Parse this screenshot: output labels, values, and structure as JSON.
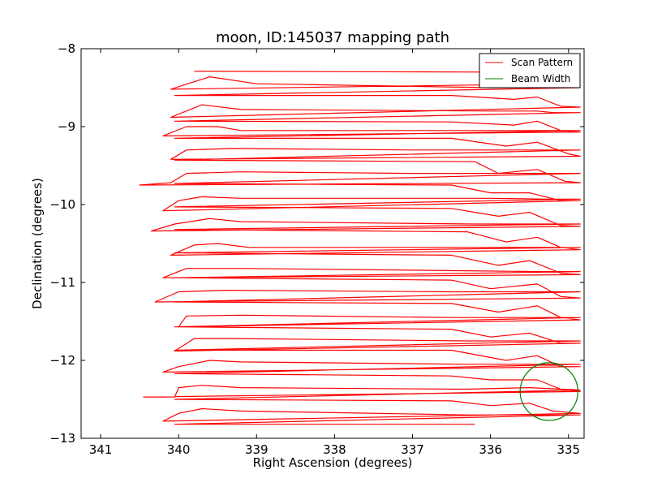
{
  "chart_data": {
    "type": "line",
    "title": "moon, ID:145037 mapping path",
    "xlabel": "Right Ascension (degrees)",
    "ylabel": "Declination (degrees)",
    "xlim": [
      341.25,
      334.8
    ],
    "ylim": [
      -13,
      -8
    ],
    "x_ticks": [
      341,
      340,
      339,
      338,
      337,
      336,
      335
    ],
    "y_ticks": [
      -13,
      -12,
      -11,
      -10,
      -9,
      -8
    ],
    "x_tick_labels": [
      "341",
      "340",
      "339",
      "338",
      "337",
      "336",
      "335"
    ],
    "y_tick_labels": [
      "−13",
      "−12",
      "−11",
      "−10",
      "−9",
      "−8"
    ],
    "grid": false,
    "legend_position": "top-right",
    "colors": {
      "scan": "#ff0000",
      "beam": "#008000"
    },
    "scan_shape": {
      "left_ra": 340.1,
      "right_ra": 334.85,
      "row_start_dec": -8.3,
      "row_step_dec": -0.149,
      "row_count": 31,
      "final_row_end_ra": 336.2
    },
    "series": [
      {
        "name": "Scan Pattern",
        "kind": "scan",
        "points": [
          [
            339.8,
            -8.29
          ],
          [
            336.0,
            -8.3
          ],
          [
            335.4,
            -8.35
          ],
          [
            335.0,
            -8.45
          ],
          [
            340.1,
            -8.52
          ],
          [
            339.6,
            -8.36
          ],
          [
            339.0,
            -8.45
          ],
          [
            336.0,
            -8.5
          ],
          [
            335.3,
            -8.5
          ],
          [
            335.0,
            -8.5
          ],
          [
            334.85,
            -8.5
          ],
          [
            340.05,
            -8.6
          ],
          [
            336.5,
            -8.6
          ],
          [
            335.7,
            -8.65
          ],
          [
            335.4,
            -8.62
          ],
          [
            335.1,
            -8.74
          ],
          [
            334.85,
            -8.75
          ],
          [
            340.1,
            -8.88
          ],
          [
            339.7,
            -8.72
          ],
          [
            339.2,
            -8.78
          ],
          [
            336.0,
            -8.8
          ],
          [
            335.4,
            -8.8
          ],
          [
            335.2,
            -8.82
          ],
          [
            334.85,
            -8.82
          ],
          [
            340.05,
            -8.93
          ],
          [
            336.5,
            -8.94
          ],
          [
            335.7,
            -8.98
          ],
          [
            335.4,
            -8.93
          ],
          [
            335.1,
            -9.05
          ],
          [
            334.85,
            -9.07
          ],
          [
            340.2,
            -9.12
          ],
          [
            339.9,
            -9.0
          ],
          [
            339.5,
            -9.0
          ],
          [
            339.2,
            -9.05
          ],
          [
            336.0,
            -9.05
          ],
          [
            335.3,
            -9.05
          ],
          [
            334.85,
            -9.05
          ],
          [
            340.05,
            -9.15
          ],
          [
            336.5,
            -9.15
          ],
          [
            335.8,
            -9.25
          ],
          [
            335.4,
            -9.2
          ],
          [
            335.0,
            -9.35
          ],
          [
            334.85,
            -9.38
          ],
          [
            340.1,
            -9.42
          ],
          [
            339.9,
            -9.3
          ],
          [
            339.3,
            -9.28
          ],
          [
            337.0,
            -9.3
          ],
          [
            336.0,
            -9.3
          ],
          [
            335.3,
            -9.3
          ],
          [
            334.85,
            -9.3
          ],
          [
            340.05,
            -9.43
          ],
          [
            336.2,
            -9.45
          ],
          [
            335.9,
            -9.6
          ],
          [
            335.4,
            -9.55
          ],
          [
            335.05,
            -9.7
          ],
          [
            334.85,
            -9.72
          ],
          [
            340.5,
            -9.75
          ],
          [
            340.1,
            -9.72
          ],
          [
            339.9,
            -9.6
          ],
          [
            339.2,
            -9.58
          ],
          [
            337.0,
            -9.6
          ],
          [
            335.9,
            -9.6
          ],
          [
            335.3,
            -9.6
          ],
          [
            334.85,
            -9.6
          ],
          [
            340.05,
            -9.73
          ],
          [
            336.5,
            -9.75
          ],
          [
            336.0,
            -9.85
          ],
          [
            335.5,
            -9.85
          ],
          [
            335.1,
            -9.95
          ],
          [
            334.85,
            -9.95
          ],
          [
            340.2,
            -10.08
          ],
          [
            340.0,
            -9.95
          ],
          [
            339.7,
            -9.9
          ],
          [
            339.2,
            -9.92
          ],
          [
            336.0,
            -9.92
          ],
          [
            335.3,
            -9.93
          ],
          [
            334.85,
            -9.93
          ],
          [
            340.05,
            -10.03
          ],
          [
            336.5,
            -10.05
          ],
          [
            335.9,
            -10.15
          ],
          [
            335.5,
            -10.1
          ],
          [
            335.1,
            -10.27
          ],
          [
            334.85,
            -10.28
          ],
          [
            340.35,
            -10.34
          ],
          [
            340.05,
            -10.25
          ],
          [
            339.6,
            -10.18
          ],
          [
            339.2,
            -10.22
          ],
          [
            336.2,
            -10.25
          ],
          [
            335.7,
            -10.25
          ],
          [
            334.85,
            -10.25
          ],
          [
            340.05,
            -10.32
          ],
          [
            336.3,
            -10.35
          ],
          [
            335.8,
            -10.48
          ],
          [
            335.4,
            -10.42
          ],
          [
            335.1,
            -10.55
          ],
          [
            334.85,
            -10.58
          ],
          [
            340.1,
            -10.65
          ],
          [
            339.8,
            -10.52
          ],
          [
            339.5,
            -10.5
          ],
          [
            339.1,
            -10.55
          ],
          [
            336.3,
            -10.55
          ],
          [
            335.7,
            -10.55
          ],
          [
            334.85,
            -10.55
          ],
          [
            340.05,
            -10.62
          ],
          [
            336.5,
            -10.65
          ],
          [
            335.9,
            -10.78
          ],
          [
            335.5,
            -10.72
          ],
          [
            335.1,
            -10.88
          ],
          [
            334.85,
            -10.9
          ],
          [
            340.2,
            -10.94
          ],
          [
            339.9,
            -10.82
          ],
          [
            339.2,
            -10.82
          ],
          [
            336.3,
            -10.85
          ],
          [
            335.4,
            -10.86
          ],
          [
            334.85,
            -10.86
          ],
          [
            340.05,
            -10.94
          ],
          [
            336.5,
            -10.97
          ],
          [
            336.0,
            -11.08
          ],
          [
            335.4,
            -11.02
          ],
          [
            335.1,
            -11.18
          ],
          [
            334.85,
            -11.2
          ],
          [
            340.3,
            -11.25
          ],
          [
            340.0,
            -11.12
          ],
          [
            339.4,
            -11.1
          ],
          [
            336.5,
            -11.12
          ],
          [
            335.4,
            -11.12
          ],
          [
            334.85,
            -11.12
          ],
          [
            340.05,
            -11.25
          ],
          [
            336.5,
            -11.27
          ],
          [
            335.9,
            -11.38
          ],
          [
            335.4,
            -11.3
          ],
          [
            335.1,
            -11.45
          ],
          [
            334.85,
            -11.48
          ],
          [
            340.0,
            -11.57
          ],
          [
            339.9,
            -11.43
          ],
          [
            339.2,
            -11.42
          ],
          [
            336.5,
            -11.45
          ],
          [
            335.5,
            -11.45
          ],
          [
            334.85,
            -11.45
          ],
          [
            340.05,
            -11.57
          ],
          [
            336.5,
            -11.6
          ],
          [
            336.0,
            -11.7
          ],
          [
            335.5,
            -11.65
          ],
          [
            335.1,
            -11.78
          ],
          [
            334.85,
            -11.78
          ],
          [
            340.05,
            -11.88
          ],
          [
            339.8,
            -11.72
          ],
          [
            339.3,
            -11.72
          ],
          [
            336.3,
            -11.75
          ],
          [
            335.3,
            -11.75
          ],
          [
            334.85,
            -11.75
          ],
          [
            340.05,
            -11.87
          ],
          [
            336.5,
            -11.87
          ],
          [
            335.8,
            -12.0
          ],
          [
            335.4,
            -11.94
          ],
          [
            335.1,
            -12.08
          ],
          [
            334.85,
            -12.08
          ],
          [
            340.2,
            -12.15
          ],
          [
            340.0,
            -12.08
          ],
          [
            339.6,
            -12.0
          ],
          [
            339.2,
            -12.02
          ],
          [
            336.3,
            -12.05
          ],
          [
            335.7,
            -12.05
          ],
          [
            334.85,
            -12.05
          ],
          [
            340.05,
            -12.17
          ],
          [
            336.5,
            -12.2
          ],
          [
            336.0,
            -12.25
          ],
          [
            335.4,
            -12.25
          ],
          [
            335.1,
            -12.37
          ],
          [
            334.85,
            -12.4
          ],
          [
            340.45,
            -12.47
          ],
          [
            340.05,
            -12.47
          ],
          [
            340.0,
            -12.35
          ],
          [
            339.7,
            -12.32
          ],
          [
            339.2,
            -12.35
          ],
          [
            336.3,
            -12.37
          ],
          [
            335.5,
            -12.35
          ],
          [
            334.85,
            -12.38
          ],
          [
            340.05,
            -12.5
          ],
          [
            336.5,
            -12.52
          ],
          [
            336.0,
            -12.58
          ],
          [
            335.5,
            -12.55
          ],
          [
            335.2,
            -12.65
          ],
          [
            334.85,
            -12.68
          ],
          [
            340.2,
            -12.78
          ],
          [
            340.0,
            -12.68
          ],
          [
            339.7,
            -12.62
          ],
          [
            339.2,
            -12.65
          ],
          [
            336.3,
            -12.7
          ],
          [
            334.85,
            -12.7
          ],
          [
            340.05,
            -12.82
          ],
          [
            336.2,
            -12.82
          ]
        ]
      },
      {
        "name": "Beam Width",
        "kind": "circle",
        "center": [
          335.25,
          -12.4
        ],
        "radius": 0.37
      }
    ]
  }
}
